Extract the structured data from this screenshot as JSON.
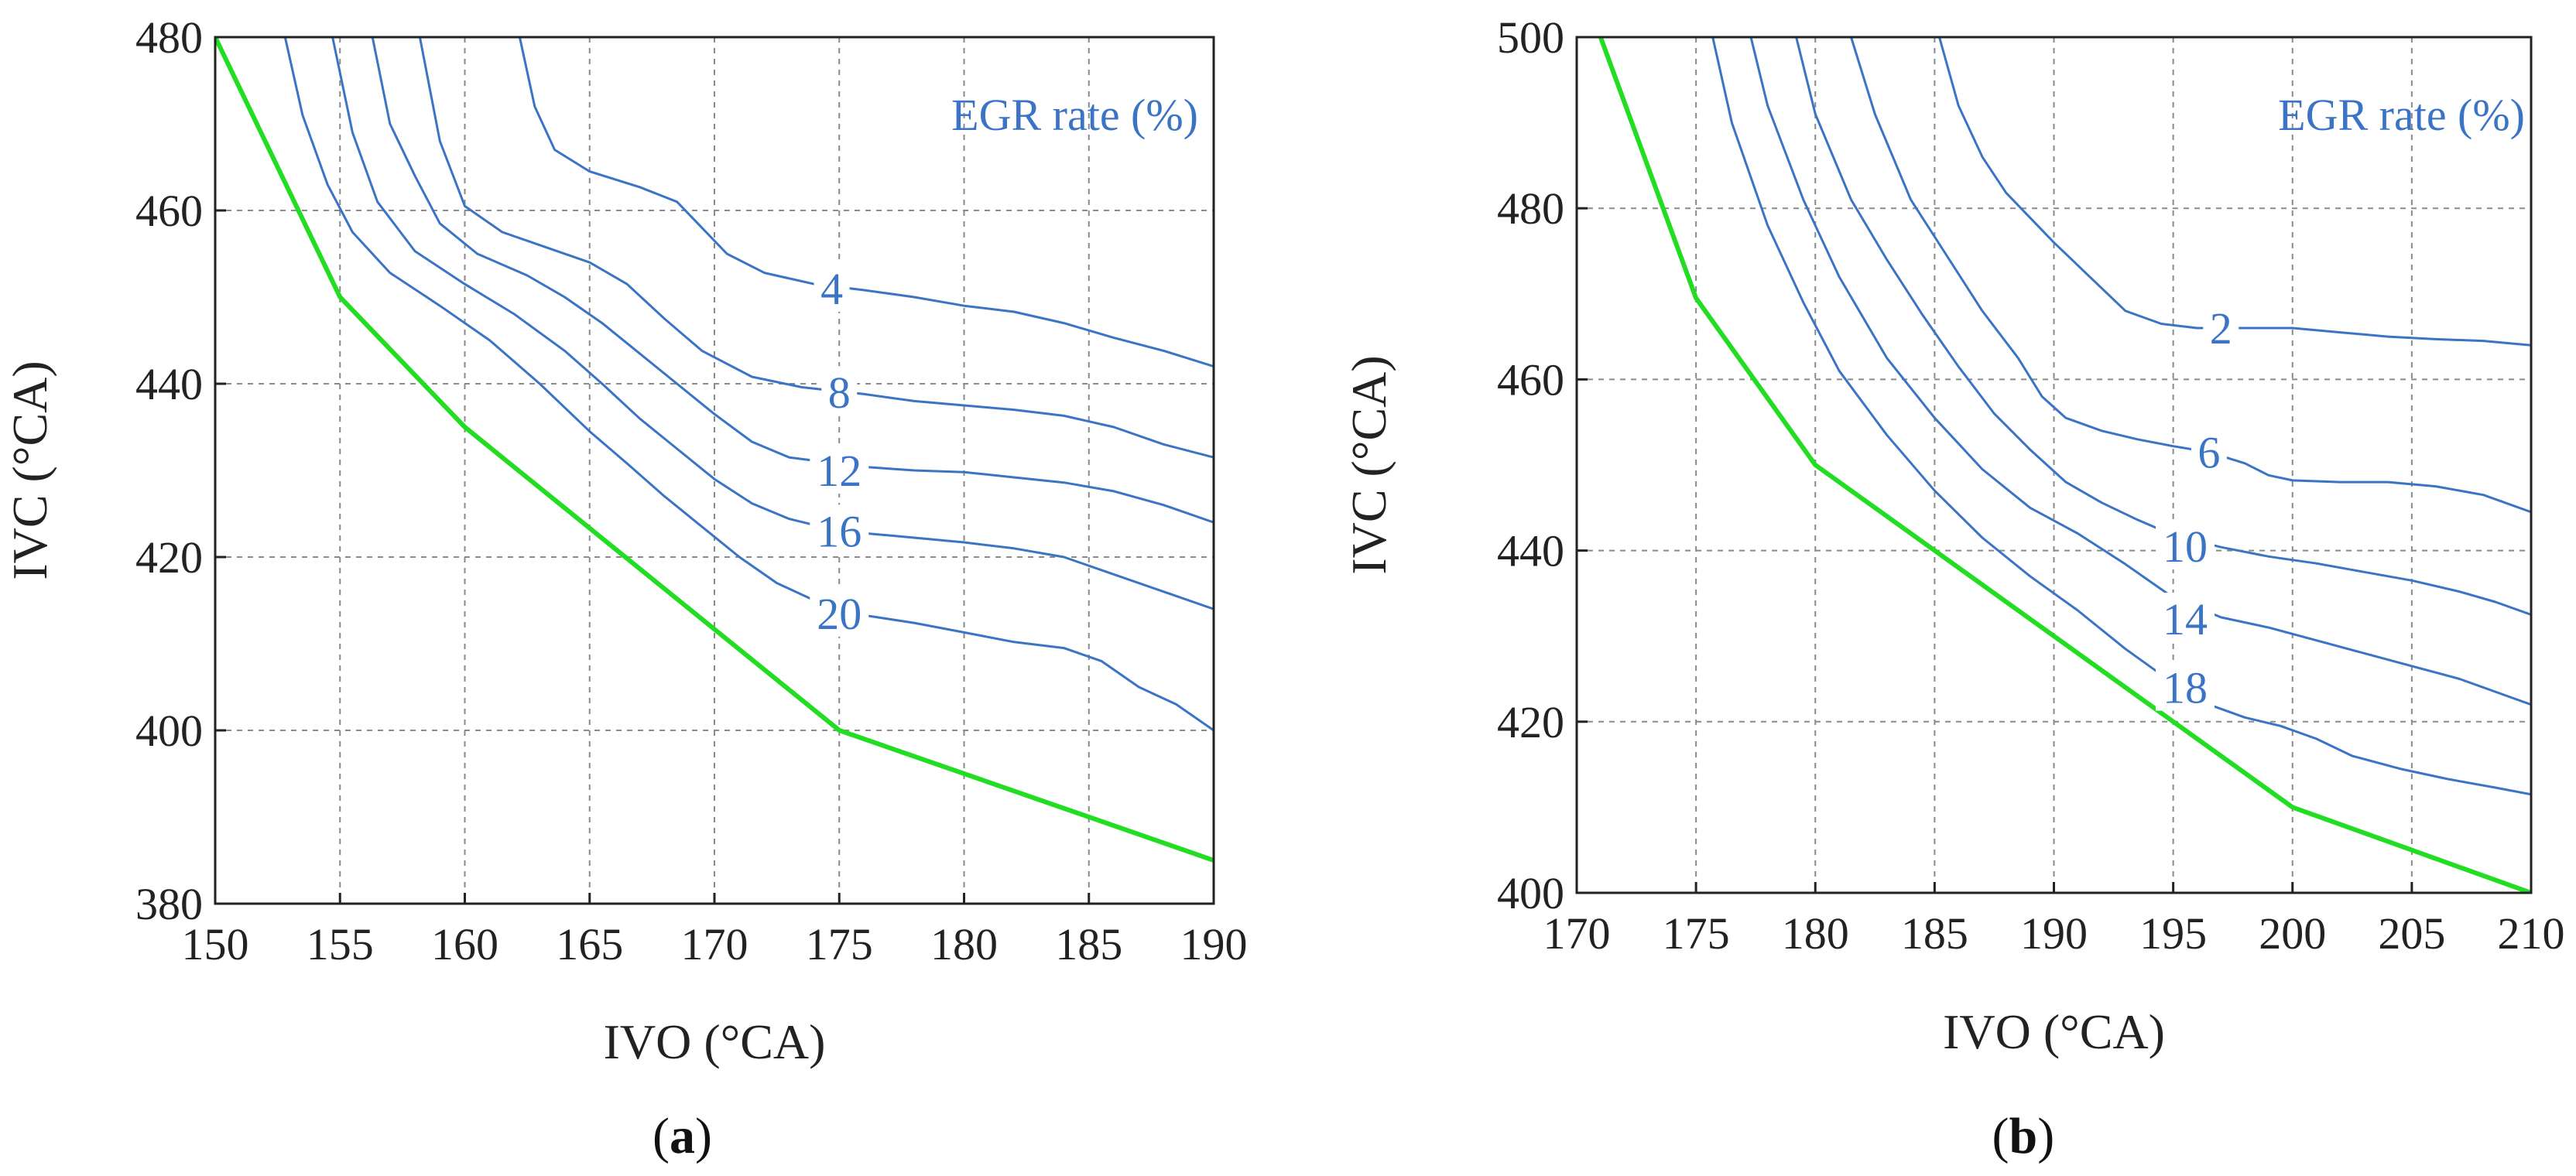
{
  "colors": {
    "contour": "#3b74c4",
    "boundary": "#22dd22",
    "grid": "#8a8a8a",
    "axis": "#222222"
  },
  "chart_data": [
    {
      "type": "line",
      "panel_label": "a",
      "title": "EGR rate (%)",
      "xlabel": "IVO (°CA)",
      "ylabel": "IVC (°CA)",
      "xlim": [
        150,
        190
      ],
      "ylim": [
        380,
        480
      ],
      "xticks": [
        150,
        155,
        160,
        165,
        170,
        175,
        180,
        185,
        190
      ],
      "yticks": [
        380,
        400,
        420,
        440,
        460,
        480
      ],
      "grid": true,
      "boundary": {
        "x": [
          150,
          155,
          160,
          175,
          190
        ],
        "y": [
          480,
          450,
          435,
          400,
          385
        ]
      },
      "series": [
        {
          "name": "4",
          "label": "4",
          "label_at": [
            174.7,
            451
          ],
          "x": [
            162.2,
            162.8,
            163.6,
            165,
            167,
            168.5,
            169.5,
            170.5,
            172,
            174,
            176,
            178,
            180,
            182,
            184,
            186,
            188,
            190
          ],
          "y": [
            480,
            472,
            467,
            464.5,
            462.7,
            461,
            458,
            455,
            452.8,
            451.5,
            450.8,
            450,
            449,
            448.3,
            447,
            445.3,
            443.8,
            442
          ]
        },
        {
          "name": "8",
          "label": "8",
          "label_at": [
            175,
            439
          ],
          "x": [
            158.2,
            159,
            160,
            161.5,
            163,
            165,
            166.5,
            168,
            169.5,
            171.5,
            173.5,
            176,
            178,
            180,
            182,
            184,
            186,
            188,
            190
          ],
          "y": [
            480,
            468,
            460.5,
            457.5,
            456,
            454,
            451.5,
            447.5,
            443.8,
            440.8,
            439.6,
            438.8,
            438,
            437.5,
            437,
            436.3,
            435,
            433,
            431.5
          ]
        },
        {
          "name": "12",
          "label": "12",
          "label_at": [
            175,
            430
          ],
          "x": [
            156.3,
            157,
            158,
            159,
            160.5,
            162.5,
            164,
            165.5,
            167,
            168.5,
            170,
            171.5,
            173,
            176,
            178,
            180,
            182,
            184,
            186,
            188,
            190
          ],
          "y": [
            480,
            470,
            464,
            458.5,
            455,
            452.5,
            450,
            447,
            443.5,
            440,
            436.5,
            433.3,
            431.5,
            430.4,
            430,
            429.8,
            429.2,
            428.6,
            427.6,
            426,
            424
          ]
        },
        {
          "name": "16",
          "label": "16",
          "label_at": [
            175,
            423
          ],
          "x": [
            154.7,
            155.5,
            156.5,
            158,
            160,
            162,
            164,
            165.5,
            167,
            168.5,
            170,
            171.5,
            173,
            175,
            177,
            180,
            182,
            184,
            186,
            188,
            190
          ],
          "y": [
            480,
            469,
            461,
            455.3,
            451.5,
            448,
            443.8,
            440,
            436,
            432.5,
            429,
            426.2,
            424.4,
            423,
            422.5,
            421.7,
            421,
            420,
            418,
            416,
            414
          ]
        },
        {
          "name": "20",
          "label": "20",
          "label_at": [
            175,
            413.5
          ],
          "x": [
            152.8,
            153.5,
            154.5,
            155.5,
            157,
            159,
            161,
            163,
            165,
            166.5,
            168,
            169.5,
            171,
            172.5,
            174,
            175.5,
            178,
            180,
            182,
            184,
            185.5,
            187,
            188.5,
            190
          ],
          "y": [
            480,
            471,
            463,
            457.5,
            452.8,
            449,
            445,
            440,
            434.5,
            430.8,
            427,
            423.5,
            420,
            417,
            415,
            413.5,
            412.4,
            411.3,
            410.2,
            409.5,
            408,
            405,
            403,
            400
          ]
        }
      ]
    },
    {
      "type": "line",
      "panel_label": "b",
      "title": "EGR rate (%)",
      "xlabel": "IVO (°CA)",
      "ylabel": "IVC (°CA)",
      "xlim": [
        170,
        210
      ],
      "ylim": [
        400,
        500
      ],
      "xticks": [
        170,
        175,
        180,
        185,
        190,
        195,
        200,
        205,
        210
      ],
      "yticks": [
        400,
        420,
        440,
        460,
        480,
        500
      ],
      "grid": true,
      "boundary": {
        "x": [
          171,
          175,
          180,
          200,
          210
        ],
        "y": [
          500,
          469.5,
          450,
          410,
          400
        ]
      },
      "series": [
        {
          "name": "2",
          "label": "2",
          "label_at": [
            197,
            466
          ],
          "x": [
            185.2,
            186,
            187,
            188,
            190,
            191.5,
            193,
            194.5,
            196,
            198,
            200,
            202,
            204,
            206,
            208,
            210
          ],
          "y": [
            500,
            492,
            486,
            481.8,
            476,
            472,
            468,
            466.5,
            466,
            466,
            466,
            465.5,
            465,
            464.7,
            464.5,
            464
          ]
        },
        {
          "name": "6",
          "label": "6",
          "label_at": [
            196.5,
            451.5
          ],
          "x": [
            181.5,
            182.5,
            184,
            185.5,
            187,
            188.5,
            189.5,
            190.5,
            192,
            193.5,
            195,
            196.5,
            198,
            199,
            200,
            202,
            204,
            206,
            208,
            210
          ],
          "y": [
            500,
            491,
            481,
            474.5,
            468,
            462.5,
            458,
            455.5,
            454,
            453,
            452.2,
            451.5,
            450.2,
            448.8,
            448.2,
            448,
            448,
            447.5,
            446.5,
            444.5
          ]
        },
        {
          "name": "10",
          "label": "10",
          "label_at": [
            195.5,
            440.5
          ],
          "x": [
            179.2,
            180,
            181.5,
            183,
            184.5,
            186,
            187.5,
            189,
            190.5,
            192,
            193.5,
            195,
            197,
            199,
            201,
            203,
            205,
            207,
            208.5,
            210
          ],
          "y": [
            500,
            491,
            481,
            474,
            467.5,
            461.5,
            456,
            451.8,
            448,
            445.6,
            443.6,
            441.8,
            440.4,
            439.3,
            438.5,
            437.5,
            436.5,
            435.2,
            434,
            432.5
          ]
        },
        {
          "name": "14",
          "label": "14",
          "label_at": [
            195.5,
            432
          ],
          "x": [
            177.3,
            178,
            179.5,
            181,
            183,
            185,
            187,
            189,
            191,
            193,
            195,
            197,
            199,
            201,
            203,
            205,
            207,
            208.5,
            210
          ],
          "y": [
            500,
            492,
            481,
            472,
            462.5,
            455.5,
            449.5,
            445,
            442,
            438.4,
            434.5,
            432.2,
            431,
            429.5,
            428,
            426.5,
            425,
            423.5,
            422
          ]
        },
        {
          "name": "18",
          "label": "18",
          "label_at": [
            195.5,
            424
          ],
          "x": [
            175.7,
            176.5,
            178,
            179.5,
            181,
            183,
            185,
            187,
            189,
            191,
            193,
            195,
            196.5,
            198,
            199.5,
            201,
            202.5,
            204.5,
            206.5,
            208.5,
            210
          ],
          "y": [
            500,
            490,
            478,
            469,
            461,
            453.5,
            447,
            441.5,
            437,
            433,
            428.5,
            424.5,
            422,
            420.5,
            419.5,
            418,
            416,
            414.5,
            413.3,
            412.3,
            411.5
          ]
        }
      ]
    }
  ]
}
